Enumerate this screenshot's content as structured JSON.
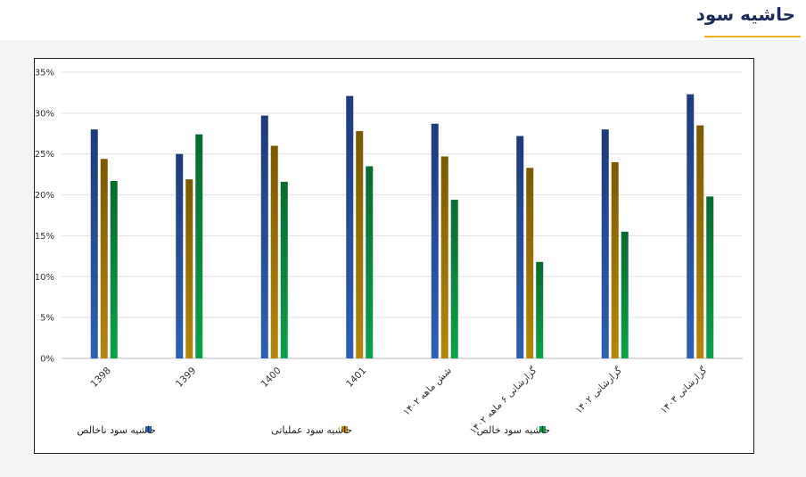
{
  "header": {
    "title": "حاشیه سود"
  },
  "colors": {
    "gross": "#2f5fb3",
    "operating": "#b5860b",
    "net": "#0aa14a",
    "accent": "#f0b429"
  },
  "chart_data": {
    "type": "bar",
    "title": "حاشیه سود",
    "categories": [
      "1398",
      "1399",
      "1400",
      "1401",
      "شش ماهه ۱۴۰۲",
      "گزارشاتی ۶ ماهه ۱۴۰۲",
      "گزارشاتی ۱۴۰۲",
      "گزارشاتی ۱۴۰۳"
    ],
    "series": [
      {
        "name": "حاشیه سود ناخالص",
        "color": "#2f5fb3",
        "values": [
          28,
          25,
          29.7,
          32.1,
          28.7,
          27.2,
          28,
          32.3
        ]
      },
      {
        "name": "حاشیه سود عملیاتی",
        "color": "#b5860b",
        "values": [
          24.4,
          21.9,
          26,
          27.8,
          24.7,
          23.3,
          24,
          28.5
        ]
      },
      {
        "name": "حاشیه سود خالص",
        "color": "#0aa14a",
        "values": [
          21.7,
          27.4,
          21.6,
          23.5,
          19.4,
          11.8,
          15.5,
          19.8
        ]
      }
    ],
    "yticks": [
      "0%",
      "5%",
      "10%",
      "15%",
      "20%",
      "25%",
      "30%",
      "35%"
    ],
    "ylim": [
      0,
      35
    ],
    "ylabel": "",
    "xlabel": "",
    "grid": true,
    "legend_position": "bottom"
  }
}
